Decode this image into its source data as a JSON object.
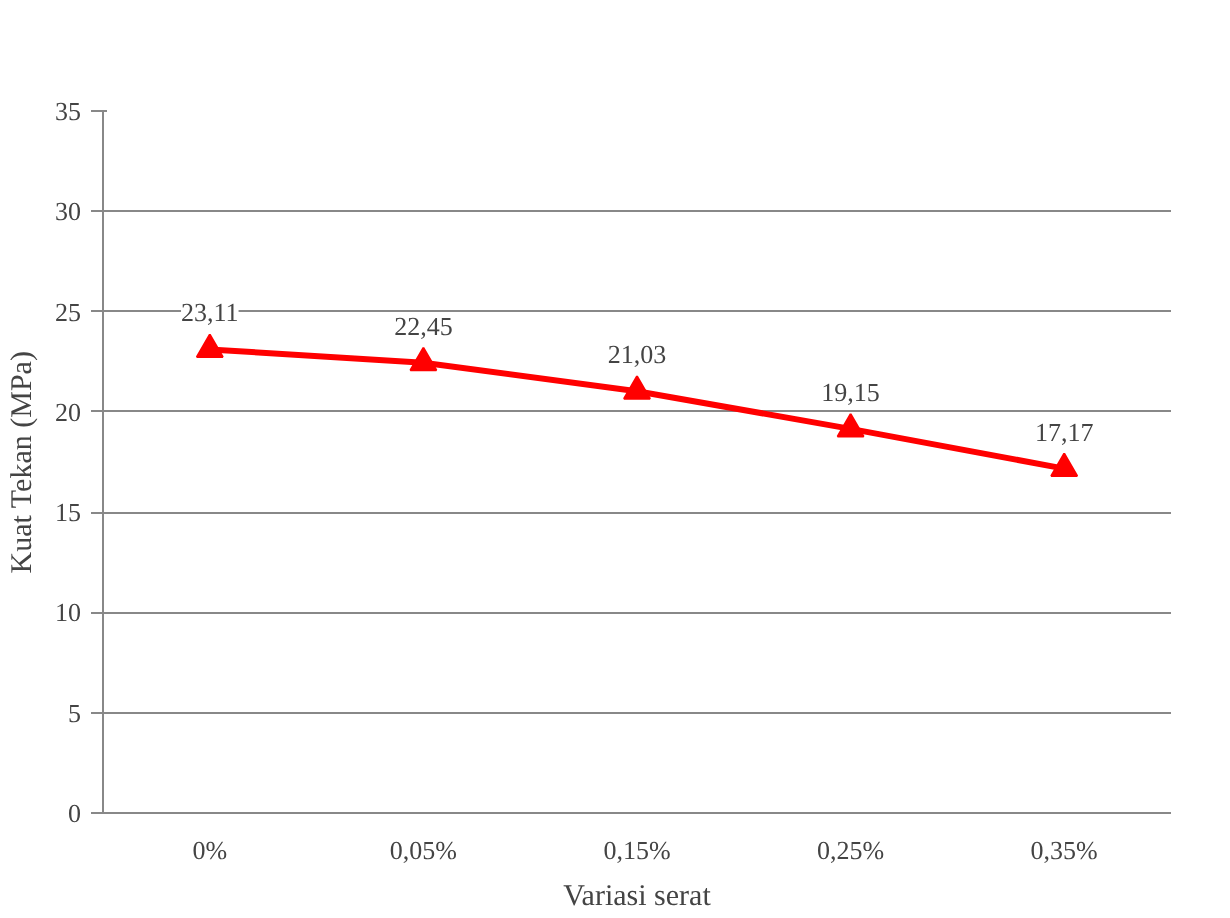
{
  "chart_data": {
    "type": "line",
    "xlabel": "Variasi serat",
    "ylabel": "Kuat Tekan (MPa)",
    "categories": [
      "0%",
      "0,05%",
      "0,15%",
      "0,25%",
      "0,35%"
    ],
    "series": [
      {
        "color": "#ff0000",
        "values": [
          23.11,
          22.45,
          21.03,
          19.15,
          17.17
        ],
        "value_labels": [
          "23,11",
          "22,45",
          "21,03",
          "19,15",
          "17,17"
        ]
      }
    ],
    "ylim": [
      0,
      35
    ],
    "yticks": [
      0,
      5,
      10,
      15,
      20,
      25,
      30,
      35
    ],
    "grid": "y",
    "marker": "triangle",
    "line_style": "solid"
  }
}
